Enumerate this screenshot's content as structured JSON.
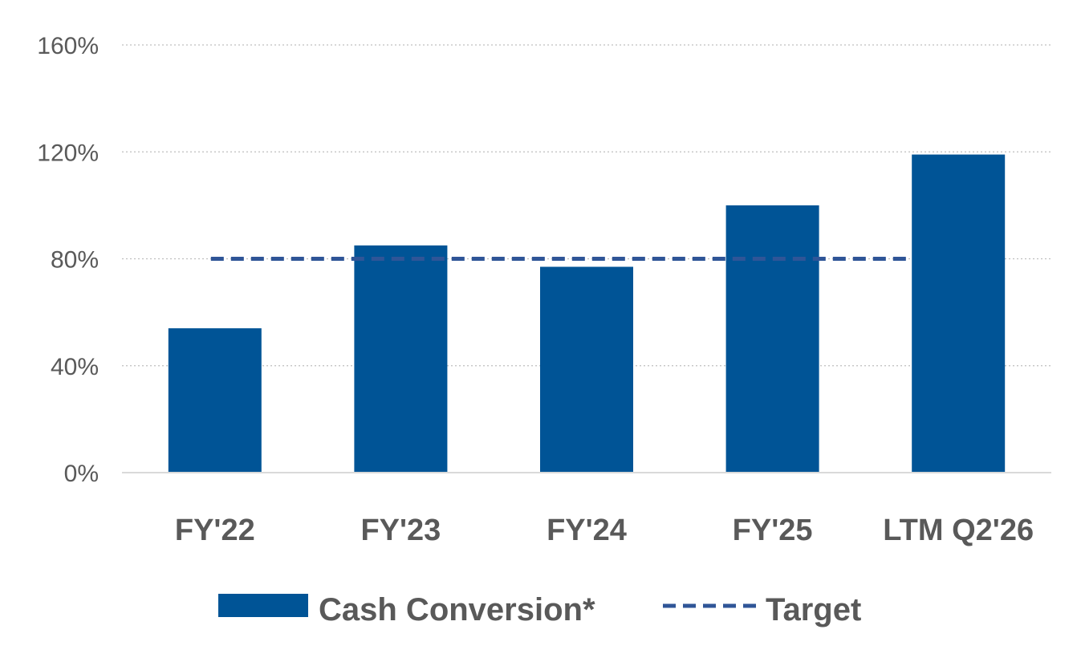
{
  "chart_data": {
    "type": "bar",
    "categories": [
      "FY'22",
      "FY'23",
      "FY'24",
      "FY'25",
      "LTM Q2'26"
    ],
    "series": [
      {
        "name": "Cash Conversion*",
        "values": [
          54,
          85,
          77,
          100,
          119
        ],
        "color": "#005496"
      }
    ],
    "target": {
      "name": "Target",
      "value": 80,
      "color": "#2f5597",
      "style": "dashed"
    },
    "ylim": [
      0,
      160
    ],
    "yticks": [
      0,
      40,
      80,
      120,
      160
    ],
    "ytick_labels": [
      "0%",
      "40%",
      "80%",
      "120%",
      "160%"
    ],
    "grid": true,
    "legend_position": "bottom",
    "title": "",
    "xlabel": "",
    "ylabel": ""
  }
}
